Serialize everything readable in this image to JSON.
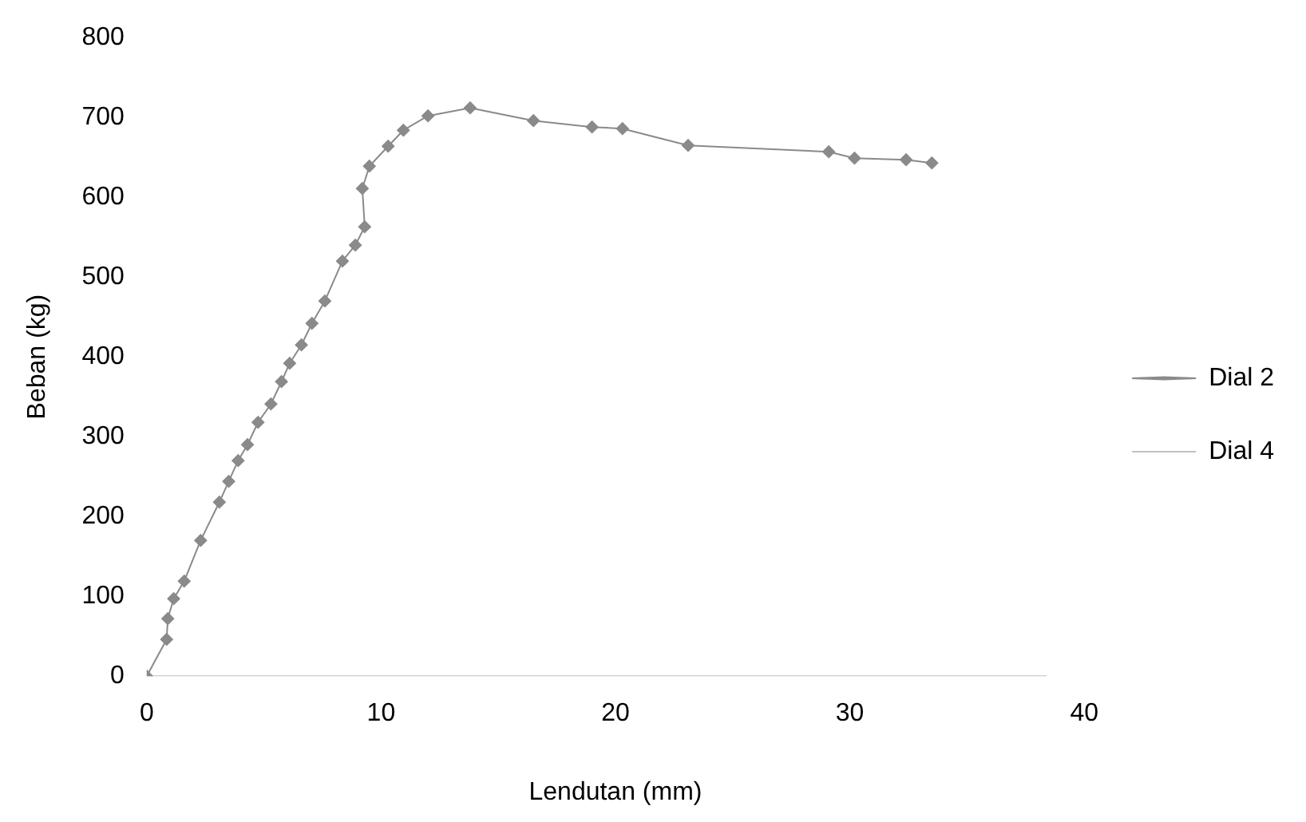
{
  "chart_data": {
    "type": "line",
    "xlabel": "Lendutan (mm)",
    "ylabel": "Beban (kg)",
    "xlim": [
      0,
      40
    ],
    "xticks": [
      0,
      10,
      20,
      30,
      40
    ],
    "ylim": [
      0,
      800
    ],
    "yticks": [
      0,
      100,
      200,
      300,
      400,
      500,
      600,
      700,
      800
    ],
    "grid": false,
    "legend": "right",
    "line_style": "solid",
    "series": [
      {
        "name": "Dial 2",
        "color": "#8a8a8a",
        "marker": "diamond",
        "x": [
          0,
          0.85,
          0.9,
          1.15,
          1.6,
          2.3,
          3.1,
          3.5,
          3.9,
          4.3,
          4.75,
          5.3,
          5.75,
          6.1,
          6.6,
          7.05,
          7.6,
          8.35,
          8.9,
          9.3,
          9.2,
          9.5,
          10.3,
          10.95,
          12,
          13.8,
          16.5,
          19,
          20.3,
          23.1,
          29.1,
          30.2,
          32.4,
          33.5
        ],
        "values": [
          0,
          46,
          72,
          97,
          119,
          170,
          218,
          244,
          270,
          290,
          318,
          341,
          369,
          392,
          415,
          442,
          470,
          520,
          540,
          563,
          611,
          639,
          664,
          684,
          702,
          712,
          696,
          688,
          686,
          665,
          657,
          649,
          647,
          643
        ]
      },
      {
        "name": "Dial 4",
        "color": "#c0c0c0",
        "marker": "none",
        "x": [
          0,
          2.6,
          6,
          10,
          14,
          19,
          25,
          30,
          34,
          38.4
        ],
        "values": [
          0,
          0,
          0,
          0,
          0,
          0,
          0,
          0,
          0,
          0
        ]
      }
    ]
  }
}
